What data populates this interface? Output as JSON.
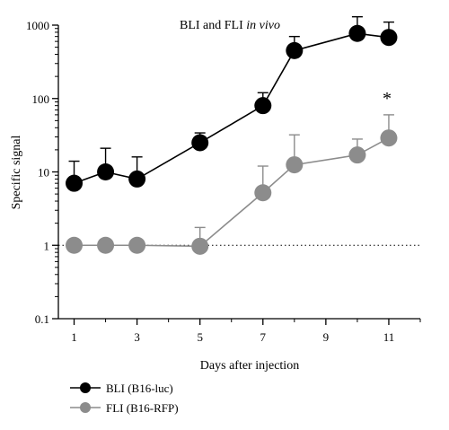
{
  "chart_data": {
    "type": "line",
    "title_main": "BLI and FLI ",
    "title_italic": "in vivo",
    "xlabel": "Days after injection",
    "ylabel": "Specific signal",
    "yscale": "log",
    "ylim": [
      0.1,
      1000
    ],
    "xlim": [
      0.5,
      12
    ],
    "x_ticks": [
      1,
      3,
      5,
      7,
      9,
      11
    ],
    "x_tick_labels": [
      "1",
      "3",
      "5",
      "7",
      "9",
      "11"
    ],
    "y_ticks": [
      0.1,
      1,
      10,
      100,
      1000
    ],
    "y_tick_labels": [
      "0.1",
      "1",
      "10",
      "100",
      "1000"
    ],
    "reference_line": {
      "y": 1,
      "style": "dotted"
    },
    "annotation": {
      "text": "*",
      "x": 11
    },
    "legend_position": "bottom-left",
    "grid": false,
    "series": [
      {
        "name": "BLI (B16-luc)",
        "color": "#000000",
        "points": [
          {
            "x": 1,
            "y": 7,
            "err": 14
          },
          {
            "x": 2,
            "y": 10,
            "err": 21
          },
          {
            "x": 3,
            "y": 8,
            "err": 16
          },
          {
            "x": 5,
            "y": 25,
            "err": 34
          },
          {
            "x": 7,
            "y": 80,
            "err": 120
          },
          {
            "x": 8,
            "y": 450,
            "err": 700
          },
          {
            "x": 10,
            "y": 770,
            "err": 1300
          },
          {
            "x": 11,
            "y": 680,
            "err": 1100
          }
        ]
      },
      {
        "name": "FLI (B16-RFP)",
        "color": "#8c8c8c",
        "points": [
          {
            "x": 1,
            "y": 1,
            "err": null
          },
          {
            "x": 2,
            "y": 1,
            "err": null
          },
          {
            "x": 3,
            "y": 1,
            "err": null
          },
          {
            "x": 5,
            "y": 0.97,
            "err": 1.75
          },
          {
            "x": 7,
            "y": 5.2,
            "err": 12
          },
          {
            "x": 8,
            "y": 12.5,
            "err": 32
          },
          {
            "x": 10,
            "y": 17,
            "err": 28
          },
          {
            "x": 11,
            "y": 29,
            "err": 60
          }
        ]
      }
    ]
  }
}
